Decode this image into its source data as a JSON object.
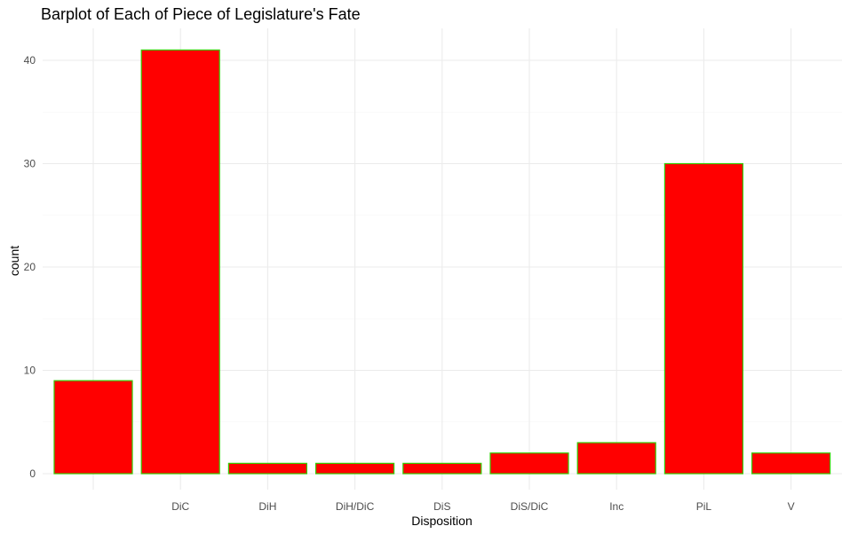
{
  "chart_data": {
    "type": "bar",
    "title": "Barplot of Each of Piece of Legislature's Fate",
    "xlabel": "Disposition",
    "ylabel": "count",
    "categories": [
      "",
      "DiC",
      "DiH",
      "DiH/DiC",
      "DiS",
      "DiS/DiC",
      "Inc",
      "PiL",
      "V"
    ],
    "values": [
      9,
      41,
      1,
      1,
      1,
      2,
      3,
      30,
      2
    ],
    "ylim": [
      0,
      43
    ],
    "yticks": [
      0,
      10,
      20,
      30,
      40
    ],
    "grid": true,
    "legend": "none",
    "colors": {
      "fill": "#ff0000",
      "outline": "#33cc00"
    }
  }
}
